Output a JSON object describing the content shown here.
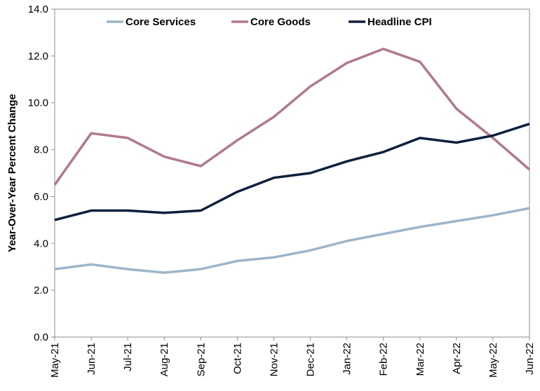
{
  "chart_data": {
    "type": "line",
    "title": "",
    "xlabel": "",
    "ylabel": "Year-Over-Year Percent Change",
    "ylim": [
      0,
      14
    ],
    "yticks": [
      "0.0",
      "2.0",
      "4.0",
      "6.0",
      "8.0",
      "10.0",
      "12.0",
      "14.0"
    ],
    "categories": [
      "May-21",
      "Jun-21",
      "Jul-21",
      "Aug-21",
      "Sep-21",
      "Oct-21",
      "Nov-21",
      "Dec-21",
      "Jan-22",
      "Feb-22",
      "Mar-22",
      "Apr-22",
      "May-22",
      "Jun-22"
    ],
    "legend_position": "top",
    "grid": false,
    "series": [
      {
        "name": "Core Services",
        "color": "#9db5c8",
        "values": [
          2.9,
          3.1,
          2.9,
          2.75,
          2.9,
          3.25,
          3.4,
          3.7,
          4.1,
          4.4,
          4.7,
          4.95,
          5.2,
          5.5
        ]
      },
      {
        "name": "Core Goods",
        "color": "#b07a86",
        "values": [
          6.5,
          8.7,
          8.5,
          7.7,
          7.3,
          8.4,
          9.4,
          10.7,
          11.7,
          12.3,
          11.75,
          9.75,
          8.5,
          7.15
        ]
      },
      {
        "name": "Headline CPI",
        "color": "#0d1f3c",
        "values": [
          5.0,
          5.4,
          5.4,
          5.3,
          5.4,
          6.2,
          6.8,
          7.0,
          7.5,
          7.9,
          8.5,
          8.3,
          8.6,
          9.1
        ]
      }
    ]
  }
}
